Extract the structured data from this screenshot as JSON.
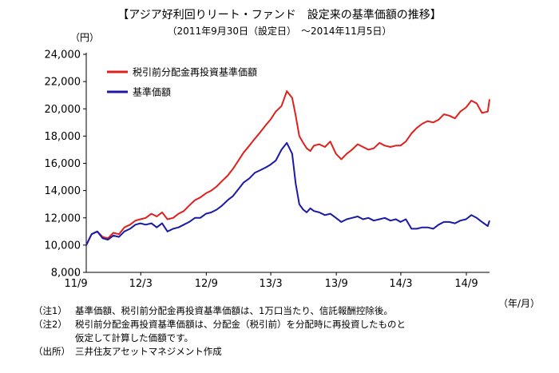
{
  "chart_data": {
    "type": "line",
    "title": "【アジア好利回りリート・ファンド　設定来の基準価額の推移】",
    "subtitle": "（2011年9月30日（設定日）　～2014年11月5日）",
    "y_unit": "（円）",
    "x_unit": "（年/月）",
    "ylim": [
      8000,
      24000
    ],
    "yticks": [
      "8,000",
      "10,000",
      "12,000",
      "14,000",
      "16,000",
      "18,000",
      "20,000",
      "22,000",
      "24,000"
    ],
    "ytick_values": [
      8000,
      10000,
      12000,
      14000,
      16000,
      18000,
      20000,
      22000,
      24000
    ],
    "xticks": [
      "11/9",
      "12/3",
      "12/9",
      "13/3",
      "13/9",
      "14/3",
      "14/9"
    ],
    "xtick_dates": [
      "2011-09",
      "2012-03",
      "2012-09",
      "2013-03",
      "2013-09",
      "2014-03",
      "2014-09"
    ],
    "xlim": [
      "2011-09-30",
      "2014-11-05"
    ],
    "grid": false,
    "legend_position": "top-left",
    "series": [
      {
        "name": "税引前分配金再投資基準価額",
        "color": "#e0201c",
        "x": [
          "2011-09-30",
          "2011-10-15",
          "2011-10-31",
          "2011-11-15",
          "2011-11-30",
          "2011-12-15",
          "2011-12-31",
          "2012-01-15",
          "2012-01-31",
          "2012-02-15",
          "2012-02-29",
          "2012-03-15",
          "2012-03-31",
          "2012-04-15",
          "2012-04-30",
          "2012-05-15",
          "2012-05-31",
          "2012-06-15",
          "2012-06-30",
          "2012-07-15",
          "2012-07-31",
          "2012-08-15",
          "2012-08-31",
          "2012-09-15",
          "2012-09-30",
          "2012-10-15",
          "2012-10-31",
          "2012-11-15",
          "2012-11-30",
          "2012-12-15",
          "2012-12-31",
          "2013-01-15",
          "2013-01-31",
          "2013-02-15",
          "2013-02-28",
          "2013-03-15",
          "2013-03-31",
          "2013-04-15",
          "2013-04-30",
          "2013-05-10",
          "2013-05-20",
          "2013-05-31",
          "2013-06-10",
          "2013-06-20",
          "2013-06-30",
          "2013-07-15",
          "2013-07-31",
          "2013-08-15",
          "2013-08-31",
          "2013-09-15",
          "2013-09-30",
          "2013-10-15",
          "2013-10-31",
          "2013-11-15",
          "2013-11-30",
          "2013-12-15",
          "2013-12-31",
          "2014-01-15",
          "2014-01-31",
          "2014-02-15",
          "2014-02-28",
          "2014-03-15",
          "2014-03-31",
          "2014-04-15",
          "2014-04-30",
          "2014-05-15",
          "2014-05-31",
          "2014-06-15",
          "2014-06-30",
          "2014-07-15",
          "2014-07-31",
          "2014-08-15",
          "2014-08-31",
          "2014-09-15",
          "2014-09-30",
          "2014-10-15",
          "2014-10-31",
          "2014-11-05"
        ],
        "values": [
          10000,
          10800,
          11000,
          10600,
          10500,
          10900,
          10800,
          11300,
          11500,
          11800,
          11900,
          12000,
          12300,
          12100,
          12400,
          11900,
          12000,
          12300,
          12500,
          12900,
          13300,
          13500,
          13800,
          14000,
          14300,
          14700,
          15100,
          15600,
          16200,
          16800,
          17300,
          17800,
          18300,
          18800,
          19200,
          19800,
          20200,
          21300,
          20800,
          19500,
          18000,
          17500,
          17100,
          16900,
          17300,
          17400,
          17200,
          17600,
          16700,
          16300,
          16700,
          17000,
          17400,
          17200,
          17000,
          17100,
          17500,
          17300,
          17200,
          17300,
          17300,
          17600,
          18200,
          18600,
          18900,
          19100,
          19000,
          19200,
          19600,
          19500,
          19300,
          19800,
          20100,
          20600,
          20400,
          19700,
          19800,
          20700
        ]
      },
      {
        "name": "基準価額",
        "color": "#1a1aa6",
        "x": [
          "2011-09-30",
          "2011-10-15",
          "2011-10-31",
          "2011-11-15",
          "2011-11-30",
          "2011-12-15",
          "2011-12-31",
          "2012-01-15",
          "2012-01-31",
          "2012-02-15",
          "2012-02-29",
          "2012-03-15",
          "2012-03-31",
          "2012-04-15",
          "2012-04-30",
          "2012-05-15",
          "2012-05-31",
          "2012-06-15",
          "2012-06-30",
          "2012-07-15",
          "2012-07-31",
          "2012-08-15",
          "2012-08-31",
          "2012-09-15",
          "2012-09-30",
          "2012-10-15",
          "2012-10-31",
          "2012-11-15",
          "2012-11-30",
          "2012-12-15",
          "2012-12-31",
          "2013-01-15",
          "2013-01-31",
          "2013-02-15",
          "2013-02-28",
          "2013-03-15",
          "2013-03-31",
          "2013-04-15",
          "2013-04-30",
          "2013-05-10",
          "2013-05-20",
          "2013-05-31",
          "2013-06-10",
          "2013-06-20",
          "2013-06-30",
          "2013-07-15",
          "2013-07-31",
          "2013-08-15",
          "2013-08-31",
          "2013-09-15",
          "2013-09-30",
          "2013-10-15",
          "2013-10-31",
          "2013-11-15",
          "2013-11-30",
          "2013-12-15",
          "2013-12-31",
          "2014-01-15",
          "2014-01-31",
          "2014-02-15",
          "2014-02-28",
          "2014-03-15",
          "2014-03-31",
          "2014-04-15",
          "2014-04-30",
          "2014-05-15",
          "2014-05-31",
          "2014-06-15",
          "2014-06-30",
          "2014-07-15",
          "2014-07-31",
          "2014-08-15",
          "2014-08-31",
          "2014-09-15",
          "2014-09-30",
          "2014-10-15",
          "2014-10-31",
          "2014-11-05"
        ],
        "values": [
          10000,
          10800,
          11000,
          10500,
          10400,
          10700,
          10600,
          11000,
          11200,
          11500,
          11600,
          11500,
          11600,
          11300,
          11600,
          11000,
          11200,
          11300,
          11500,
          11700,
          12000,
          12000,
          12300,
          12400,
          12600,
          12900,
          13300,
          13600,
          14100,
          14600,
          14900,
          15300,
          15500,
          15700,
          15900,
          16200,
          17000,
          17500,
          16700,
          14500,
          13000,
          12600,
          12400,
          12700,
          12500,
          12400,
          12200,
          12300,
          12000,
          11700,
          11900,
          12000,
          12100,
          11900,
          12000,
          11800,
          11900,
          12000,
          11800,
          11900,
          11700,
          11900,
          11200,
          11200,
          11300,
          11300,
          11200,
          11500,
          11700,
          11700,
          11600,
          11800,
          11900,
          12200,
          12000,
          11700,
          11400,
          11800
        ]
      }
    ]
  },
  "notes": [
    {
      "tag": "（注1）",
      "text": "基準価額、税引前分配金再投資基準価額は、1万口当たり、信託報酬控除後。"
    },
    {
      "tag": "（注2）",
      "text": "税引前分配金再投資基準価額は、分配金（税引前）を分配時に再投資したものと"
    },
    {
      "tag": "",
      "text": "仮定して計算した価額です。"
    },
    {
      "tag": "（出所）",
      "text": "三井住友アセットマネジメント作成"
    }
  ]
}
